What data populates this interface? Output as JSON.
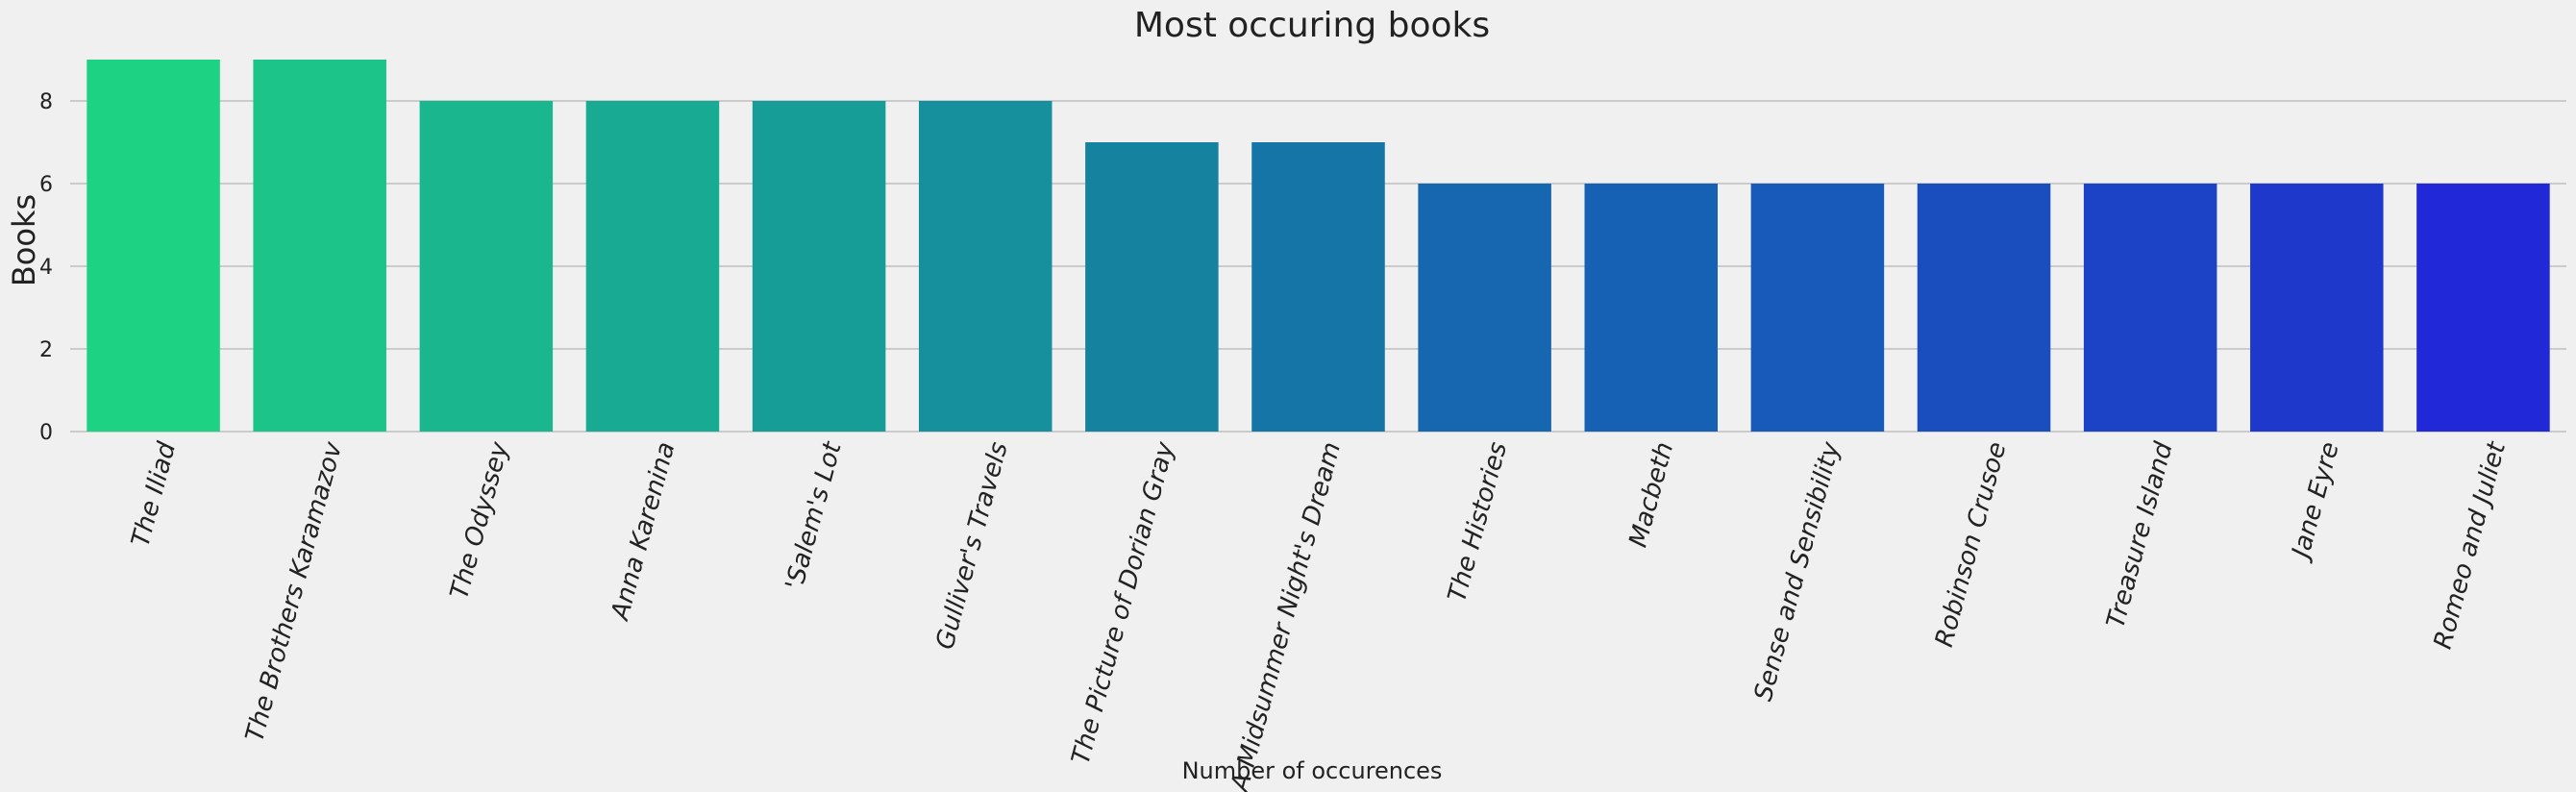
{
  "chart_data": {
    "type": "bar",
    "title": "Most occuring books",
    "xlabel": "Number of occurences",
    "ylabel": "Books",
    "categories": [
      "The Iliad",
      "The Brothers Karamazov",
      "The Odyssey",
      "Anna Karenina",
      "'Salem's Lot",
      "Gulliver's Travels",
      "The Picture of Dorian Gray",
      "A Midsummer Night's Dream",
      "The Histories",
      "Macbeth",
      "Sense and Sensibility",
      "Robinson Crusoe",
      "Treasure Island",
      "Jane Eyre",
      "Romeo and Juliet"
    ],
    "values": [
      9,
      9,
      8,
      8,
      8,
      8,
      7,
      7,
      6,
      6,
      6,
      6,
      6,
      6,
      6
    ],
    "colors": [
      "#1ed283",
      "#1cc48a",
      "#1ab68d",
      "#19aa93",
      "#179d98",
      "#16909c",
      "#1583a0",
      "#1575a6",
      "#1667af",
      "#1761b5",
      "#185aba",
      "#1a4ebf",
      "#1c43c6",
      "#1e38cb",
      "#2128d8"
    ],
    "ylim": [
      0,
      9.2
    ],
    "yticks": [
      0,
      2,
      4,
      6,
      8
    ],
    "grid": true,
    "legend": "none"
  }
}
